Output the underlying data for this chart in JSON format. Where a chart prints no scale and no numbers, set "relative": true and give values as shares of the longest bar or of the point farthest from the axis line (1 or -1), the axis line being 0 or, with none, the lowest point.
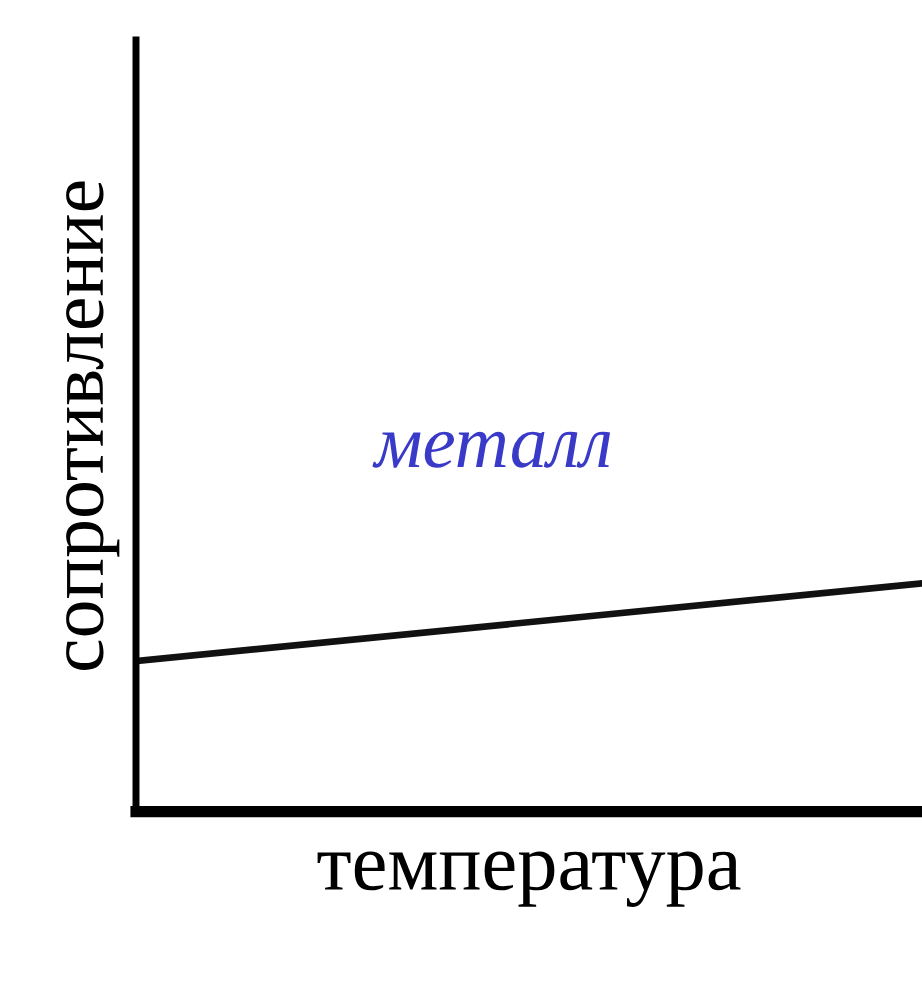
{
  "chart_data": {
    "type": "line",
    "xlabel": "температура",
    "ylabel": "сопротивление",
    "categories": [
      null,
      null
    ],
    "series": [
      {
        "color": "#111111",
        "values": [
          0.66,
          1
        ]
      }
    ],
    "relative": true,
    "ref_lines": [
      {
        "axis": "y",
        "value": 0,
        "color": "#000000"
      }
    ],
    "annotations": [
      "металл"
    ],
    "grid": false,
    "legend": false,
    "tick_labels": false
  }
}
